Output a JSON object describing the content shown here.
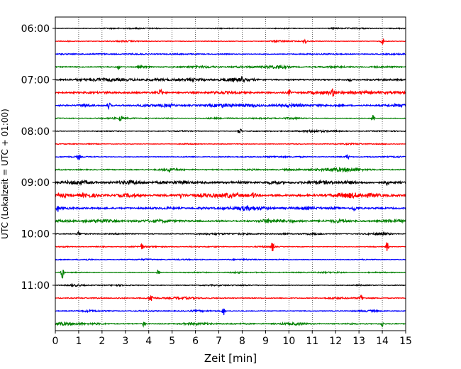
{
  "chart_data": {
    "type": "line",
    "title": "",
    "xlabel": "Zeit  [min]",
    "ylabel": "UTC (Lokalzeit = UTC + 01:00)",
    "xlim": [
      0,
      15
    ],
    "x_ticks": [
      0,
      1,
      2,
      3,
      4,
      5,
      6,
      7,
      8,
      9,
      10,
      11,
      12,
      13,
      14,
      15
    ],
    "x_tick_labels": [
      "0",
      "1",
      "2",
      "3",
      "4",
      "5",
      "6",
      "7",
      "8",
      "9",
      "10",
      "11",
      "12",
      "13",
      "14",
      "15"
    ],
    "y_ticks": [
      "06:00",
      "07:00",
      "08:00",
      "09:00",
      "10:00",
      "11:00"
    ],
    "trace_interval_minutes": 15,
    "grid": "vertical dotted at each minute",
    "line_colors": [
      "#000000",
      "#ff0000",
      "#0000ff",
      "#008000"
    ],
    "series": [
      {
        "start": "06:00",
        "color": "#000000",
        "noise": 0.35,
        "events": []
      },
      {
        "start": "06:15",
        "color": "#ff0000",
        "noise": 0.3,
        "events": [
          [
            10.7,
            5
          ],
          [
            14.0,
            4
          ]
        ]
      },
      {
        "start": "06:30",
        "color": "#0000ff",
        "noise": 0.45,
        "events": []
      },
      {
        "start": "06:45",
        "color": "#008000",
        "noise": 0.6,
        "events": [
          [
            2.7,
            3
          ]
        ]
      },
      {
        "start": "07:00",
        "color": "#000000",
        "noise": 0.8,
        "events": [
          [
            8.0,
            4
          ],
          [
            12.6,
            3
          ]
        ]
      },
      {
        "start": "07:15",
        "color": "#ff0000",
        "noise": 1.0,
        "events": [
          [
            4.5,
            4
          ],
          [
            10.0,
            4
          ],
          [
            11.9,
            5
          ]
        ]
      },
      {
        "start": "07:30",
        "color": "#0000ff",
        "noise": 0.9,
        "events": [
          [
            2.3,
            4
          ]
        ]
      },
      {
        "start": "07:45",
        "color": "#008000",
        "noise": 0.4,
        "events": [
          [
            2.8,
            4
          ],
          [
            13.6,
            6
          ]
        ]
      },
      {
        "start": "08:00",
        "color": "#000000",
        "noise": 0.35,
        "events": [
          [
            7.9,
            5
          ]
        ]
      },
      {
        "start": "08:15",
        "color": "#ff0000",
        "noise": 0.35,
        "events": []
      },
      {
        "start": "08:30",
        "color": "#0000ff",
        "noise": 0.4,
        "events": [
          [
            1.0,
            4
          ],
          [
            12.5,
            4
          ]
        ]
      },
      {
        "start": "08:45",
        "color": "#008000",
        "noise": 0.6,
        "events": [
          [
            4.9,
            3
          ]
        ]
      },
      {
        "start": "09:00",
        "color": "#000000",
        "noise": 1.2,
        "events": [
          [
            14.2,
            4
          ]
        ]
      },
      {
        "start": "09:15",
        "color": "#ff0000",
        "noise": 1.3,
        "events": [
          [
            5.4,
            4
          ],
          [
            8.5,
            4
          ]
        ]
      },
      {
        "start": "09:30",
        "color": "#0000ff",
        "noise": 1.0,
        "events": [
          [
            0.1,
            4
          ],
          [
            12.8,
            3
          ]
        ]
      },
      {
        "start": "09:45",
        "color": "#008000",
        "noise": 0.9,
        "events": []
      },
      {
        "start": "10:00",
        "color": "#000000",
        "noise": 0.5,
        "events": [
          [
            1.0,
            3
          ]
        ]
      },
      {
        "start": "10:15",
        "color": "#ff0000",
        "noise": 0.35,
        "events": [
          [
            3.7,
            4
          ],
          [
            9.3,
            7
          ],
          [
            14.2,
            7
          ]
        ]
      },
      {
        "start": "10:30",
        "color": "#0000ff",
        "noise": 0.35,
        "events": []
      },
      {
        "start": "10:45",
        "color": "#008000",
        "noise": 0.4,
        "events": [
          [
            0.3,
            9
          ],
          [
            4.4,
            4
          ]
        ]
      },
      {
        "start": "11:00",
        "color": "#000000",
        "noise": 0.35,
        "events": []
      },
      {
        "start": "11:15",
        "color": "#ff0000",
        "noise": 0.5,
        "events": [
          [
            4.1,
            6
          ],
          [
            13.1,
            5
          ]
        ]
      },
      {
        "start": "11:30",
        "color": "#0000ff",
        "noise": 0.45,
        "events": [
          [
            7.2,
            6
          ]
        ]
      },
      {
        "start": "11:45",
        "color": "#008000",
        "noise": 0.6,
        "events": [
          [
            3.8,
            4
          ],
          [
            14.0,
            4
          ]
        ]
      }
    ]
  }
}
